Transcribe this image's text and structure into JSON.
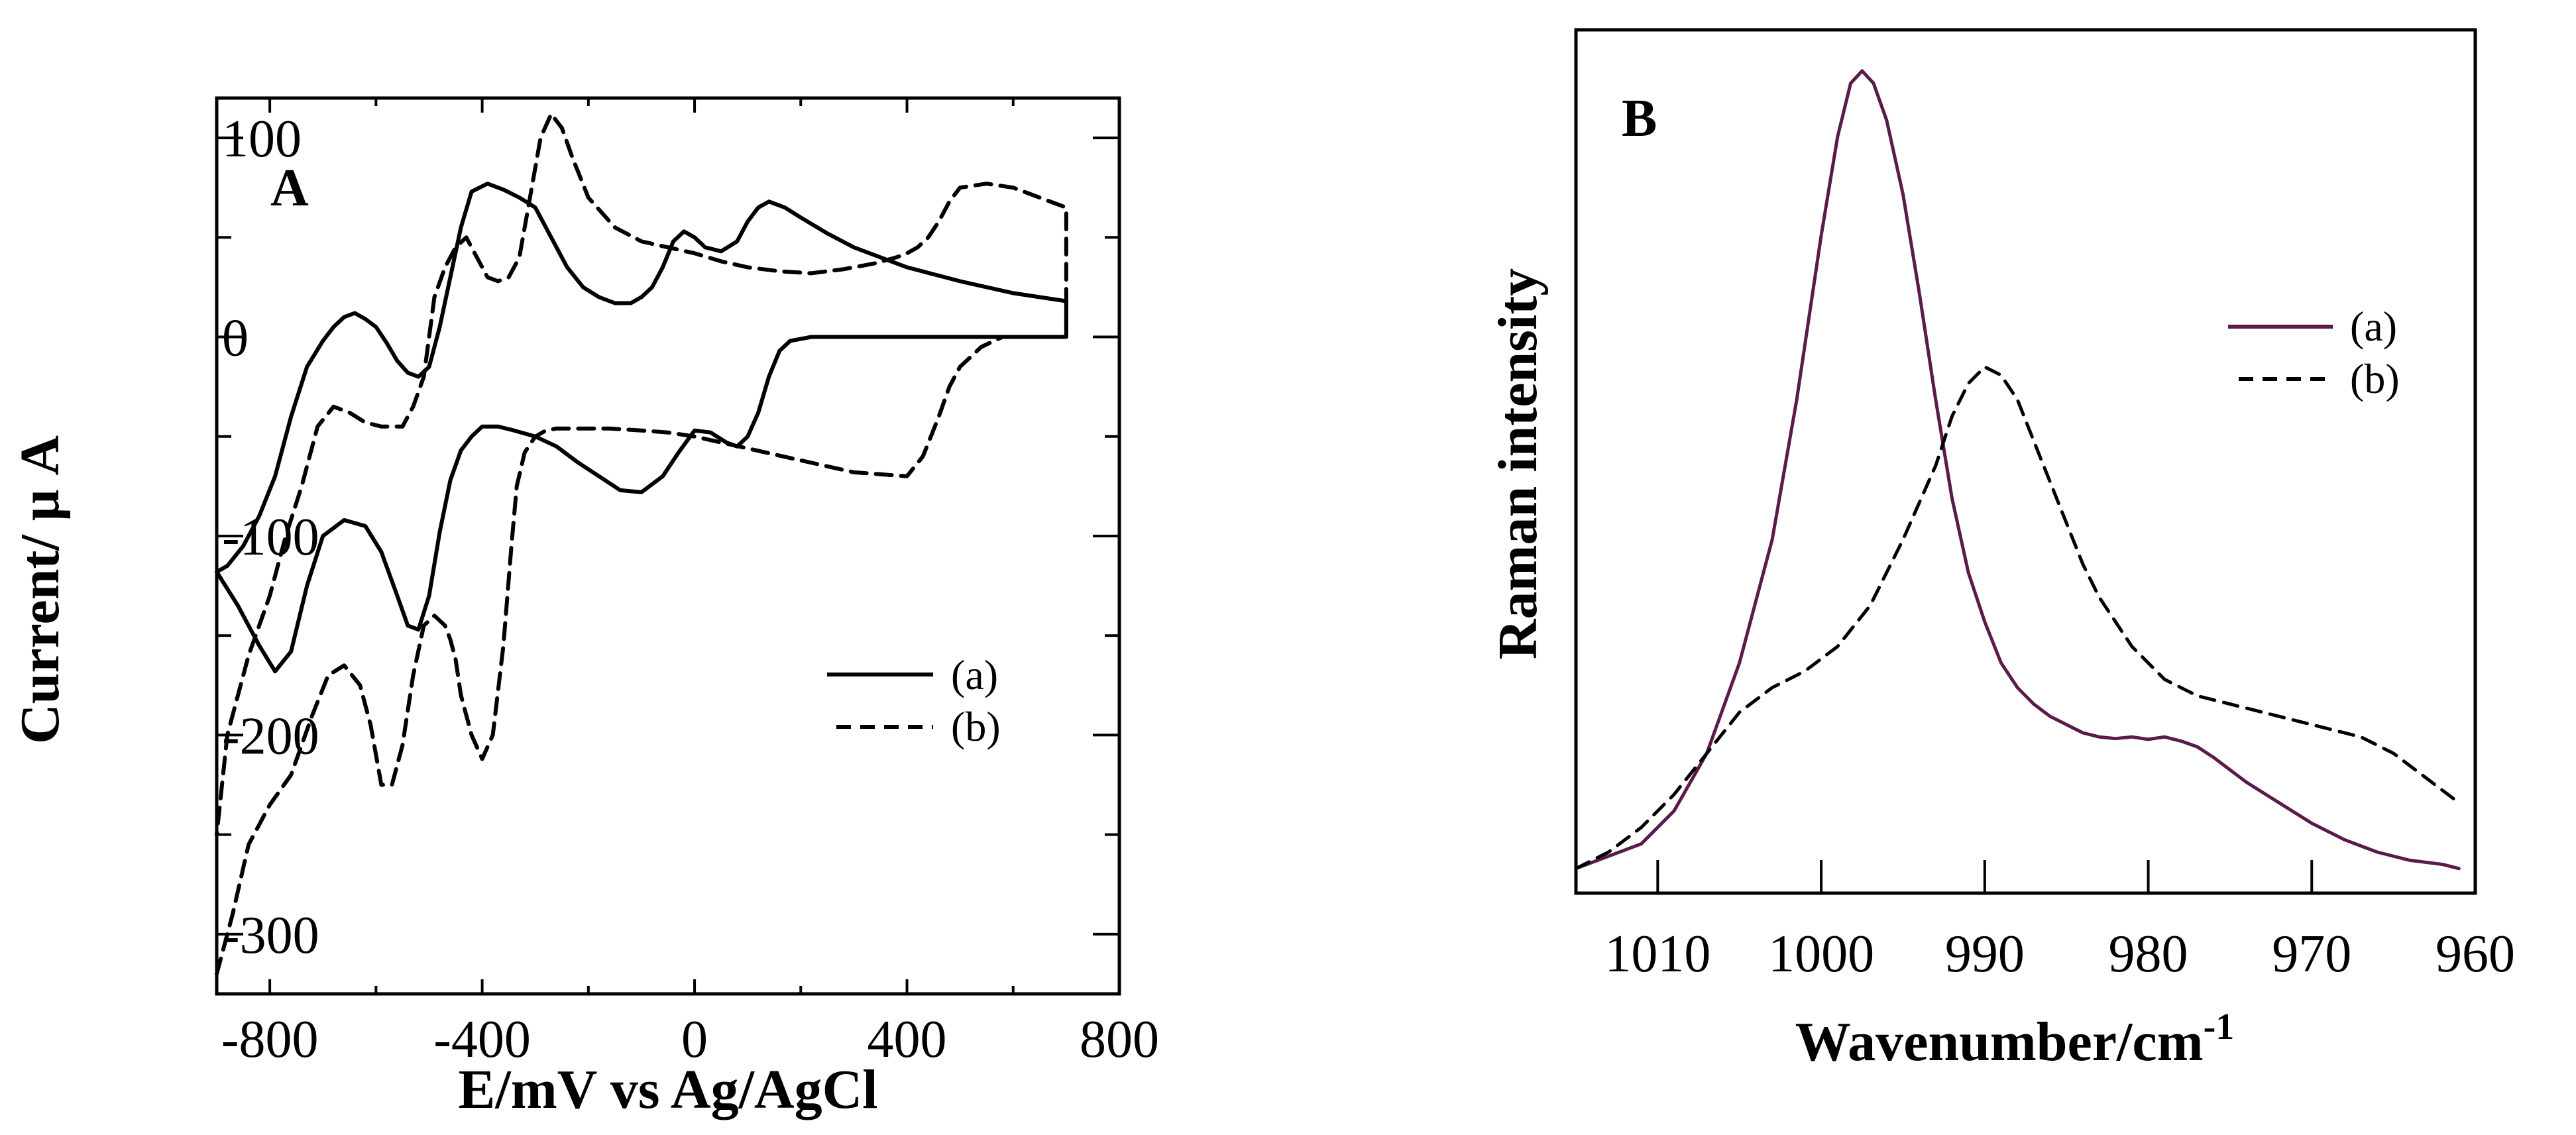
{
  "chart_data": [
    {
      "type": "line",
      "panel_label": "A",
      "xlabel": "E/mV vs Ag/AgCl",
      "ylabel": "Current/ μ A",
      "xlim": [
        -900,
        800
      ],
      "ylim": [
        -330,
        120
      ],
      "xticks": [
        -800,
        -400,
        0,
        400,
        800
      ],
      "yticks": [
        100,
        0,
        -100,
        -200,
        -300
      ],
      "xtick_labels": [
        "-800",
        "-400",
        "0",
        "400",
        "800"
      ],
      "ytick_labels": [
        "100",
        "0",
        "-100",
        "-200",
        "-300"
      ],
      "legend_position": "lower-right",
      "series": [
        {
          "name": "(a)",
          "style": "solid",
          "color": "#000000",
          "x": [
            -900,
            -860,
            -820,
            -790,
            -760,
            -730,
            -700,
            -660,
            -620,
            -590,
            -560,
            -540,
            -520,
            -500,
            -480,
            -460,
            -440,
            -420,
            -400,
            -370,
            -340,
            -300,
            -260,
            -220,
            -180,
            -140,
            -100,
            -60,
            -30,
            0,
            30,
            60,
            80,
            100,
            120,
            140,
            160,
            180,
            220,
            280,
            350,
            500,
            700,
            700,
            600,
            500,
            400,
            300,
            250,
            200,
            170,
            140,
            120,
            100,
            80,
            50,
            20,
            0,
            -20,
            -40,
            -60,
            -80,
            -100,
            -120,
            -150,
            -180,
            -210,
            -240,
            -270,
            -300,
            -330,
            -360,
            -390,
            -420,
            -440,
            -460,
            -480,
            -500,
            -520,
            -540,
            -560,
            -580,
            -600,
            -620,
            -640,
            -660,
            -680,
            -700,
            -730,
            -760,
            -790,
            -820,
            -850,
            -880,
            -900
          ],
          "y": [
            -118,
            -135,
            -155,
            -168,
            -158,
            -125,
            -100,
            -92,
            -95,
            -108,
            -130,
            -145,
            -147,
            -130,
            -98,
            -72,
            -57,
            -50,
            -45,
            -45,
            -47,
            -50,
            -55,
            -63,
            -70,
            -77,
            -78,
            -70,
            -58,
            -47,
            -48,
            -53,
            -55,
            -50,
            -38,
            -20,
            -7,
            -2,
            0,
            0,
            0,
            0,
            0,
            18,
            22,
            28,
            35,
            45,
            52,
            60,
            65,
            68,
            65,
            58,
            48,
            43,
            45,
            50,
            53,
            48,
            35,
            25,
            20,
            17,
            17,
            20,
            25,
            35,
            50,
            65,
            70,
            74,
            77,
            73,
            55,
            30,
            5,
            -15,
            -20,
            -18,
            -12,
            -3,
            5,
            9,
            12,
            10,
            5,
            -2,
            -15,
            -40,
            -70,
            -90,
            -105,
            -115,
            -118
          ]
        },
        {
          "name": "(b)",
          "style": "dashed",
          "color": "#000000",
          "x": [
            -900,
            -870,
            -840,
            -800,
            -760,
            -720,
            -690,
            -660,
            -630,
            -610,
            -590,
            -570,
            -550,
            -530,
            -510,
            -490,
            -470,
            -460,
            -450,
            -440,
            -420,
            -400,
            -380,
            -360,
            -345,
            -335,
            -320,
            -300,
            -280,
            -260,
            -220,
            -160,
            -100,
            -50,
            0,
            50,
            100,
            200,
            300,
            400,
            430,
            460,
            480,
            500,
            520,
            540,
            580,
            620,
            700,
            700,
            650,
            600,
            550,
            500,
            480,
            460,
            440,
            420,
            400,
            380,
            340,
            280,
            220,
            160,
            100,
            50,
            0,
            -50,
            -100,
            -150,
            -200,
            -230,
            -250,
            -270,
            -290,
            -310,
            -330,
            -350,
            -370,
            -390,
            -410,
            -430,
            -450,
            -470,
            -490,
            -510,
            -530,
            -550,
            -570,
            -590,
            -620,
            -650,
            -680,
            -710,
            -740,
            -770,
            -800,
            -840,
            -880,
            -900
          ],
          "y": [
            -320,
            -290,
            -255,
            -235,
            -220,
            -190,
            -170,
            -165,
            -175,
            -195,
            -225,
            -225,
            -205,
            -170,
            -145,
            -140,
            -145,
            -152,
            -162,
            -180,
            -200,
            -212,
            -200,
            -155,
            -105,
            -75,
            -58,
            -50,
            -47,
            -46,
            -46,
            -46,
            -47,
            -48,
            -50,
            -53,
            -56,
            -62,
            -68,
            -70,
            -60,
            -40,
            -25,
            -15,
            -10,
            -5,
            0,
            0,
            0,
            65,
            70,
            75,
            77,
            75,
            68,
            58,
            50,
            45,
            42,
            40,
            37,
            34,
            32,
            33,
            35,
            38,
            42,
            45,
            48,
            55,
            70,
            90,
            105,
            112,
            100,
            70,
            40,
            30,
            28,
            30,
            40,
            50,
            45,
            35,
            20,
            -20,
            -35,
            -45,
            -45,
            -45,
            -43,
            -38,
            -35,
            -45,
            -75,
            -100,
            -130,
            -160,
            -200,
            -250
          ]
        }
      ]
    },
    {
      "type": "line",
      "panel_label": "B",
      "xlabel": "Wavenumber/cm",
      "xlabel_superscript": "-1",
      "ylabel": "Raman intensity",
      "xlim": [
        1015,
        960
      ],
      "ylim": [
        0,
        1.05
      ],
      "xticks": [
        1010,
        1000,
        990,
        980,
        970,
        960
      ],
      "xtick_labels": [
        "1010",
        "1000",
        "990",
        "980",
        "970",
        "960"
      ],
      "legend_position": "upper-right",
      "series": [
        {
          "name": "(a)",
          "style": "solid",
          "color": "#5a1a4a",
          "x": [
            1015,
            1013,
            1011,
            1009,
            1007,
            1005,
            1003,
            1001.5,
            1000,
            999,
            998.2,
            997.5,
            996.8,
            996,
            995,
            994,
            993,
            992,
            991,
            990,
            989,
            988,
            987,
            986,
            985,
            984,
            983,
            982,
            981,
            980,
            979,
            978,
            977,
            976,
            975,
            974,
            972,
            970,
            968,
            966,
            964,
            962,
            961
          ],
          "y": [
            0.03,
            0.045,
            0.06,
            0.1,
            0.17,
            0.28,
            0.43,
            0.6,
            0.8,
            0.92,
            0.985,
            1.0,
            0.985,
            0.94,
            0.85,
            0.73,
            0.6,
            0.48,
            0.39,
            0.33,
            0.28,
            0.25,
            0.23,
            0.215,
            0.205,
            0.195,
            0.19,
            0.188,
            0.19,
            0.187,
            0.19,
            0.185,
            0.178,
            0.165,
            0.15,
            0.135,
            0.11,
            0.085,
            0.065,
            0.05,
            0.04,
            0.035,
            0.03
          ]
        },
        {
          "name": "(b)",
          "style": "dashed",
          "color": "#000000",
          "x": [
            1015,
            1013,
            1011,
            1009,
            1007,
            1005,
            1003,
            1001,
            999,
            997,
            995,
            993,
            992,
            991,
            990,
            989,
            988,
            987,
            986,
            985,
            984,
            983,
            982,
            981,
            980,
            979,
            978,
            977,
            975,
            973,
            971,
            969,
            967,
            965,
            963,
            961
          ],
          "y": [
            0.03,
            0.05,
            0.08,
            0.12,
            0.17,
            0.22,
            0.25,
            0.27,
            0.3,
            0.35,
            0.43,
            0.52,
            0.58,
            0.62,
            0.64,
            0.63,
            0.6,
            0.55,
            0.5,
            0.45,
            0.4,
            0.36,
            0.33,
            0.3,
            0.28,
            0.26,
            0.25,
            0.24,
            0.23,
            0.22,
            0.21,
            0.2,
            0.19,
            0.17,
            0.14,
            0.11
          ]
        }
      ]
    }
  ]
}
